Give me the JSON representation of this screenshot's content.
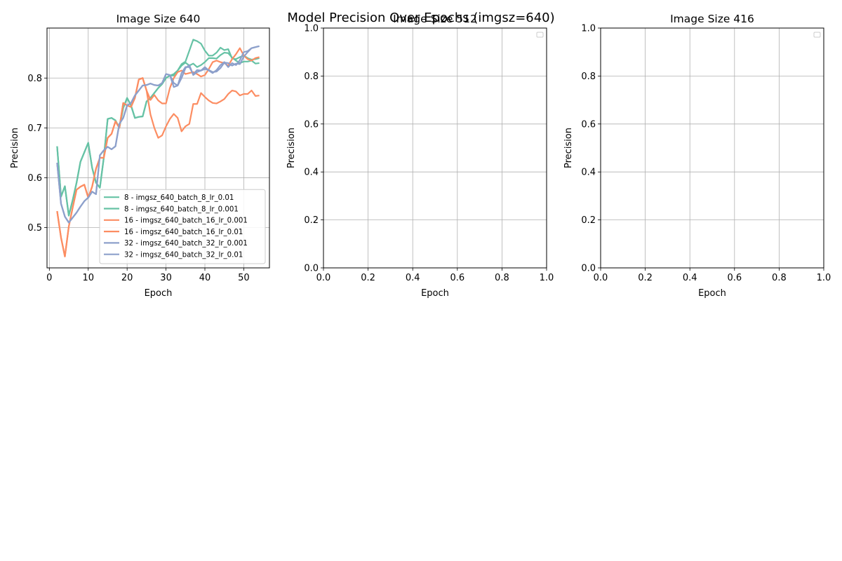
{
  "figure": {
    "suptitle": "Model Precision Over Epochs (imgsz=640)"
  },
  "colors": {
    "teal": "#66c2a5",
    "orange": "#fc8d62",
    "blue": "#8da0cb",
    "grid": "#b0b0b0",
    "axis": "#000000"
  },
  "chart_data": [
    {
      "type": "line",
      "title": "Image Size 640",
      "xlabel": "Epoch",
      "ylabel": "Precision",
      "xlim": [
        -0.6,
        56.6
      ],
      "ylim": [
        0.4191,
        0.9003
      ],
      "xticks": [
        0,
        10,
        20,
        30,
        40,
        50
      ],
      "yticks": [
        0.5,
        0.6,
        0.7,
        0.8
      ],
      "yticklabels": [
        "0.5",
        "0.6",
        "0.7",
        "0.8"
      ],
      "grid": true,
      "legend_position": "lower-right",
      "series": [
        {
          "name": "8 - imgsz_640_batch_8_lr_0.01",
          "color": "#66c2a5",
          "x": [
            2,
            3,
            4,
            5,
            6,
            7,
            8,
            9,
            10,
            11,
            12,
            13,
            14,
            15,
            16,
            17,
            18,
            19,
            20,
            21,
            22,
            23,
            24,
            25,
            26,
            27,
            28,
            29,
            30,
            31,
            32,
            33,
            34,
            35,
            36,
            37,
            38,
            39,
            40,
            41,
            42,
            43,
            44,
            45,
            46,
            47,
            48,
            49,
            50,
            51,
            52,
            53,
            54
          ],
          "y": [
            0.663,
            0.562,
            0.583,
            0.524,
            0.555,
            0.59,
            0.632,
            0.651,
            0.67,
            0.62,
            0.59,
            0.58,
            0.64,
            0.718,
            0.72,
            0.715,
            0.7,
            0.74,
            0.76,
            0.745,
            0.72,
            0.722,
            0.723,
            0.753,
            0.76,
            0.77,
            0.78,
            0.788,
            0.8,
            0.805,
            0.805,
            0.815,
            0.825,
            0.831,
            0.825,
            0.829,
            0.822,
            0.826,
            0.832,
            0.84,
            0.84,
            0.839,
            0.846,
            0.851,
            0.85,
            0.841,
            0.835,
            0.83,
            0.833,
            0.833,
            0.835,
            0.829,
            0.83
          ]
        },
        {
          "name": "8 - imgsz_640_batch_8_lr_0.001",
          "color": "#66c2a5",
          "x": [
            2,
            3,
            4,
            5,
            6,
            7,
            8,
            9,
            10,
            11,
            12,
            13,
            14,
            15,
            16,
            17,
            18,
            19,
            20,
            21,
            22,
            23,
            24,
            25,
            26,
            27,
            28,
            29,
            30,
            31,
            32,
            33,
            34,
            35,
            36,
            37,
            38,
            39,
            40,
            41,
            42,
            43,
            44,
            45,
            46,
            47,
            48,
            49,
            50,
            51,
            52,
            53,
            54
          ],
          "y": [
            0.663,
            0.562,
            0.583,
            0.524,
            0.555,
            0.59,
            0.632,
            0.651,
            0.67,
            0.62,
            0.59,
            0.58,
            0.64,
            0.718,
            0.72,
            0.715,
            0.7,
            0.74,
            0.76,
            0.745,
            0.72,
            0.722,
            0.723,
            0.753,
            0.76,
            0.77,
            0.78,
            0.788,
            0.8,
            0.805,
            0.808,
            0.815,
            0.828,
            0.833,
            0.855,
            0.877,
            0.874,
            0.869,
            0.855,
            0.845,
            0.845,
            0.851,
            0.861,
            0.856,
            0.858,
            0.839,
            0.838,
            0.842,
            0.845,
            0.84,
            0.837,
            0.838,
            0.84
          ]
        },
        {
          "name": "16 - imgsz_640_batch_16_lr_0.001",
          "color": "#fc8d62",
          "x": [
            2,
            3,
            4,
            5,
            6,
            7,
            8,
            9,
            10,
            11,
            12,
            13,
            14,
            15,
            16,
            17,
            18,
            19,
            20,
            21,
            22,
            23,
            24,
            25,
            26,
            27,
            28,
            29,
            30,
            31,
            32,
            33,
            34,
            35,
            36,
            37,
            38,
            39,
            40,
            41,
            42,
            43,
            44,
            45,
            46,
            47,
            48,
            49,
            50,
            51,
            52,
            53,
            54
          ],
          "y": [
            0.533,
            0.48,
            0.442,
            0.502,
            0.54,
            0.576,
            0.582,
            0.586,
            0.56,
            0.582,
            0.618,
            0.64,
            0.64,
            0.68,
            0.688,
            0.713,
            0.7,
            0.75,
            0.745,
            0.742,
            0.76,
            0.797,
            0.8,
            0.775,
            0.756,
            0.766,
            0.755,
            0.749,
            0.749,
            0.78,
            0.8,
            0.812,
            0.815,
            0.808,
            0.81,
            0.812,
            0.808,
            0.803,
            0.806,
            0.818,
            0.832,
            0.835,
            0.832,
            0.83,
            0.825,
            0.838,
            0.848,
            0.86,
            0.845,
            0.838,
            0.835,
            0.84,
            0.842
          ]
        },
        {
          "name": "16 - imgsz_640_batch_16_lr_0.01",
          "color": "#fc8d62",
          "x": [
            2,
            3,
            4,
            5,
            6,
            7,
            8,
            9,
            10,
            11,
            12,
            13,
            14,
            15,
            16,
            17,
            18,
            19,
            20,
            21,
            22,
            23,
            24,
            25,
            26,
            27,
            28,
            29,
            30,
            31,
            32,
            33,
            34,
            35,
            36,
            37,
            38,
            39,
            40,
            41,
            42,
            43,
            44,
            45,
            46,
            47,
            48,
            49,
            50,
            51,
            52,
            53,
            54
          ],
          "y": [
            0.533,
            0.48,
            0.442,
            0.502,
            0.54,
            0.576,
            0.582,
            0.586,
            0.56,
            0.582,
            0.618,
            0.64,
            0.64,
            0.68,
            0.688,
            0.713,
            0.7,
            0.75,
            0.745,
            0.742,
            0.76,
            0.797,
            0.8,
            0.775,
            0.727,
            0.7,
            0.68,
            0.685,
            0.703,
            0.718,
            0.728,
            0.72,
            0.693,
            0.703,
            0.708,
            0.748,
            0.748,
            0.77,
            0.762,
            0.755,
            0.75,
            0.749,
            0.753,
            0.758,
            0.768,
            0.775,
            0.773,
            0.765,
            0.768,
            0.768,
            0.775,
            0.764,
            0.765
          ]
        },
        {
          "name": "32 - imgsz_640_batch_32_lr_0.001",
          "color": "#8da0cb",
          "x": [
            2,
            3,
            4,
            5,
            6,
            7,
            8,
            9,
            10,
            11,
            12,
            13,
            14,
            15,
            16,
            17,
            18,
            19,
            20,
            21,
            22,
            23,
            24,
            25,
            26,
            27,
            28,
            29,
            30,
            31,
            32,
            33,
            34,
            35,
            36,
            37,
            38,
            39,
            40,
            41,
            42,
            43,
            44,
            45,
            46,
            47,
            48,
            49,
            50,
            51,
            52,
            53,
            54
          ],
          "y": [
            0.63,
            0.548,
            0.522,
            0.51,
            0.52,
            0.53,
            0.542,
            0.553,
            0.56,
            0.572,
            0.567,
            0.645,
            0.655,
            0.662,
            0.657,
            0.663,
            0.708,
            0.72,
            0.745,
            0.75,
            0.765,
            0.775,
            0.785,
            0.786,
            0.789,
            0.786,
            0.785,
            0.79,
            0.808,
            0.806,
            0.79,
            0.785,
            0.8,
            0.82,
            0.826,
            0.806,
            0.812,
            0.815,
            0.818,
            0.816,
            0.812,
            0.813,
            0.82,
            0.831,
            0.83,
            0.825,
            0.829,
            0.828,
            0.843,
            0.852,
            0.86,
            0.862,
            0.864
          ]
        },
        {
          "name": "32 - imgsz_640_batch_32_lr_0.01",
          "color": "#8da0cb",
          "x": [
            2,
            3,
            4,
            5,
            6,
            7,
            8,
            9,
            10,
            11,
            12,
            13,
            14,
            15,
            16,
            17,
            18,
            19,
            20,
            21,
            22,
            23,
            24,
            25,
            26,
            27,
            28,
            29,
            30,
            31,
            32,
            33,
            34,
            35,
            36,
            37,
            38,
            39,
            40,
            41,
            42,
            43,
            44,
            45,
            46,
            47,
            48,
            49,
            50,
            51,
            52,
            53,
            54
          ],
          "y": [
            0.63,
            0.548,
            0.522,
            0.51,
            0.52,
            0.53,
            0.542,
            0.553,
            0.56,
            0.572,
            0.567,
            0.645,
            0.655,
            0.662,
            0.657,
            0.663,
            0.708,
            0.72,
            0.745,
            0.75,
            0.765,
            0.775,
            0.785,
            0.786,
            0.789,
            0.786,
            0.785,
            0.79,
            0.808,
            0.806,
            0.782,
            0.785,
            0.81,
            0.822,
            0.822,
            0.808,
            0.816,
            0.815,
            0.822,
            0.815,
            0.81,
            0.816,
            0.826,
            0.832,
            0.822,
            0.83,
            0.826,
            0.836,
            0.852,
            0.854,
            0.86,
            0.862,
            0.864
          ]
        }
      ]
    },
    {
      "type": "line",
      "title": "Image Size 512",
      "xlabel": "Epoch",
      "ylabel": "Precision",
      "xlim": [
        0,
        1
      ],
      "ylim": [
        0,
        1
      ],
      "xticks": [
        0.0,
        0.2,
        0.4,
        0.6,
        0.8,
        1.0
      ],
      "xticklabels": [
        "0.0",
        "0.2",
        "0.4",
        "0.6",
        "0.8",
        "1.0"
      ],
      "yticks": [
        0.0,
        0.2,
        0.4,
        0.6,
        0.8,
        1.0
      ],
      "yticklabels": [
        "0.0",
        "0.2",
        "0.4",
        "0.6",
        "0.8",
        "1.0"
      ],
      "grid": true,
      "legend_position": "top-right",
      "series": []
    },
    {
      "type": "line",
      "title": "Image Size 416",
      "xlabel": "Epoch",
      "ylabel": "Precision",
      "xlim": [
        0,
        1
      ],
      "ylim": [
        0,
        1
      ],
      "xticks": [
        0.0,
        0.2,
        0.4,
        0.6,
        0.8,
        1.0
      ],
      "xticklabels": [
        "0.0",
        "0.2",
        "0.4",
        "0.6",
        "0.8",
        "1.0"
      ],
      "yticks": [
        0.0,
        0.2,
        0.4,
        0.6,
        0.8,
        1.0
      ],
      "yticklabels": [
        "0.0",
        "0.2",
        "0.4",
        "0.6",
        "0.8",
        "1.0"
      ],
      "grid": true,
      "legend_position": "top-right",
      "series": []
    }
  ]
}
